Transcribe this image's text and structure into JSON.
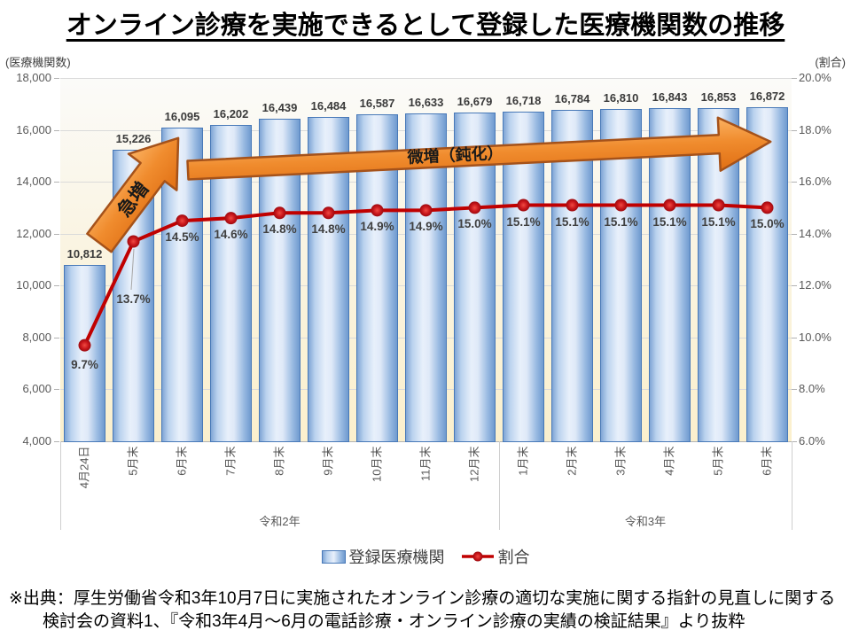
{
  "title": "オンライン診療を実施できるとして登録した医療機関数の推移",
  "chart_data": {
    "type": "bar",
    "combo": [
      "bar",
      "line"
    ],
    "title": "オンライン診療を実施できるとして登録した医療機関数の推移",
    "categories": [
      "4月24日",
      "5月末",
      "6月末",
      "7月末",
      "8月末",
      "9月末",
      "10月末",
      "11月末",
      "12月末",
      "1月末",
      "2月末",
      "3月末",
      "4月末",
      "5月末",
      "6月末"
    ],
    "era_groups": [
      {
        "label": "令和2年",
        "span": 9
      },
      {
        "label": "令和3年",
        "span": 6
      }
    ],
    "series": [
      {
        "name": "登録医療機関",
        "type": "bar",
        "axis": "left",
        "values": [
          10812,
          15226,
          16095,
          16202,
          16439,
          16484,
          16587,
          16633,
          16679,
          16718,
          16784,
          16810,
          16843,
          16853,
          16872
        ],
        "value_labels": [
          "10,812",
          "15,226",
          "16,095",
          "16,202",
          "16,439",
          "16,484",
          "16,587",
          "16,633",
          "16,679",
          "16,718",
          "16,784",
          "16,810",
          "16,843",
          "16,853",
          "16,872"
        ]
      },
      {
        "name": "割合",
        "type": "line",
        "axis": "right",
        "values": [
          9.7,
          13.7,
          14.5,
          14.6,
          14.8,
          14.8,
          14.9,
          14.9,
          15.0,
          15.1,
          15.1,
          15.1,
          15.1,
          15.1,
          15.0
        ],
        "value_labels": [
          "9.7%",
          "13.7%",
          "14.5%",
          "14.6%",
          "14.8%",
          "14.8%",
          "14.9%",
          "14.9%",
          "15.0%",
          "15.1%",
          "15.1%",
          "15.1%",
          "15.1%",
          "15.1%",
          "15.0%"
        ]
      }
    ],
    "left_axis": {
      "unit_label": "(医療機関数)",
      "min": 4000,
      "max": 18000,
      "step": 2000,
      "tick_labels": [
        "18,000",
        "16,000",
        "14,000",
        "12,000",
        "10,000",
        "8,000",
        "6,000",
        "4,000"
      ]
    },
    "right_axis": {
      "unit_label": "(割合)",
      "min": 6,
      "max": 20,
      "step": 2,
      "tick_labels": [
        "20.0%",
        "18.0%",
        "16.0%",
        "14.0%",
        "12.0%",
        "10.0%",
        "8.0%",
        "6.0%"
      ]
    },
    "annotations": [
      {
        "id": "rapid-increase-arrow",
        "text": "急増"
      },
      {
        "id": "slow-increase-arrow",
        "text": "微増（鈍化）"
      }
    ],
    "legend_position": "bottom",
    "grid": true,
    "colors": {
      "bar_fill_center": "#e8f0fb",
      "bar_fill_edge": "#6f9acf",
      "bar_border": "#4879b8",
      "line": "#c00000",
      "marker": "#b40d12",
      "arrow_fill": "#f08c2e",
      "arrow_border": "#a5521a",
      "grid": "#dadada",
      "axis_text": "#595959",
      "label_text": "#3a3a3a"
    }
  },
  "source_note": {
    "line1": "※出典：厚生労働省令和3年10月7日に実施されたオンライン診療の適切な実施に関する指針の見直しに関する",
    "line2": "検討会の資料1、『令和3年4月～6月の電話診療・オンライン診療の実績の検証結果』より抜粋"
  }
}
